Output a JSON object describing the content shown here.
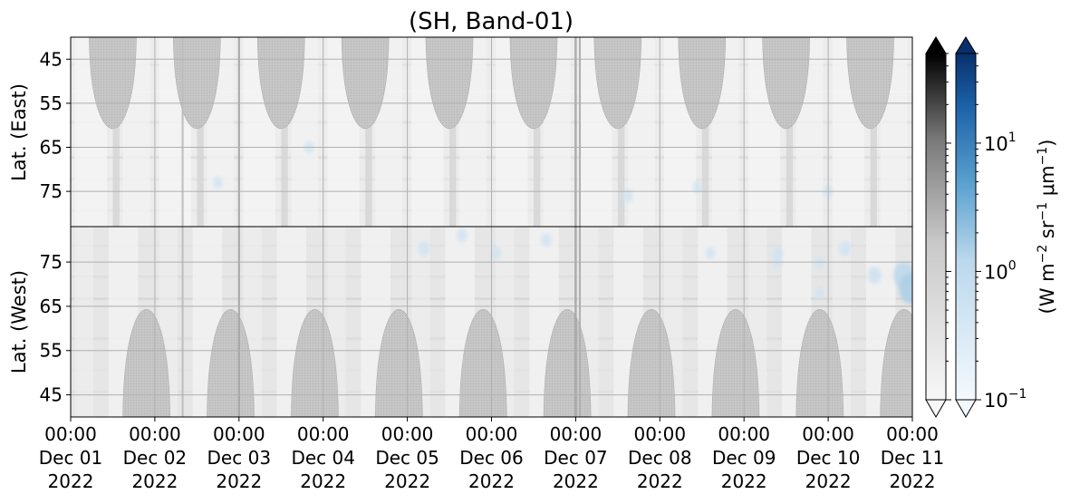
{
  "chart_data": {
    "type": "heatmap",
    "title": "(SH, Band-01)",
    "x": {
      "start": "2022-12-01T00:00",
      "end": "2022-12-11T00:00",
      "tick_times": [
        "2022-12-01T00:00",
        "2022-12-02T00:00",
        "2022-12-03T00:00",
        "2022-12-04T00:00",
        "2022-12-05T00:00",
        "2022-12-06T00:00",
        "2022-12-07T00:00",
        "2022-12-08T00:00",
        "2022-12-09T00:00",
        "2022-12-10T00:00",
        "2022-12-11T00:00"
      ],
      "tick_labels": [
        [
          "00:00",
          "Dec 01",
          "2022"
        ],
        [
          "00:00",
          "Dec 02",
          "2022"
        ],
        [
          "00:00",
          "Dec 03",
          "2022"
        ],
        [
          "00:00",
          "Dec 04",
          "2022"
        ],
        [
          "00:00",
          "Dec 05",
          "2022"
        ],
        [
          "00:00",
          "Dec 06",
          "2022"
        ],
        [
          "00:00",
          "Dec 07",
          "2022"
        ],
        [
          "00:00",
          "Dec 08",
          "2022"
        ],
        [
          "00:00",
          "Dec 09",
          "2022"
        ],
        [
          "00:00",
          "Dec 10",
          "2022"
        ],
        [
          "00:00",
          "Dec 11",
          "2022"
        ]
      ]
    },
    "panels": [
      {
        "id": "east",
        "ylabel": "Lat. (East)",
        "ylim": [
          40,
          83
        ],
        "inverted": true,
        "yticks": [
          45,
          55,
          65,
          75
        ],
        "sunlit_max_lat": 60.5,
        "sunlit_arch_days": [
          0.5,
          1.5,
          2.5,
          3.5,
          4.5,
          5.5,
          6.5,
          7.5,
          8.5,
          9.5
        ]
      },
      {
        "id": "west",
        "ylabel": "Lat. (West)",
        "ylim": [
          40,
          83
        ],
        "inverted": false,
        "yticks": [
          45,
          55,
          65,
          75
        ],
        "sunlit_max_lat": 64,
        "sunlit_arch_days": [
          0.9,
          1.9,
          2.9,
          3.9,
          4.9,
          5.9,
          6.9,
          7.9,
          8.9,
          9.9
        ]
      }
    ],
    "grid": true,
    "colorbars": [
      {
        "name": "gray",
        "scale": "log",
        "range": [
          0.1,
          50
        ],
        "extend": "both",
        "colors": [
          "#f6f6f6",
          "#9a9a9a",
          "#000000"
        ]
      },
      {
        "name": "blue",
        "scale": "log",
        "range": [
          0.1,
          50
        ],
        "extend": "both",
        "colors": [
          "#f0f6fb",
          "#6aaed6",
          "#08306b"
        ],
        "ticks": [
          {
            "base": "10",
            "exp": "−1",
            "value": 0.1
          },
          {
            "base": "10",
            "exp": "0",
            "value": 1
          },
          {
            "base": "10",
            "exp": "1",
            "value": 10
          }
        ],
        "label": {
          "prefix": "(W m",
          "sup1": "−2",
          "mid1": " sr",
          "sup2": "−1",
          "mid2": " μm",
          "sup3": "−1",
          "suffix": ")"
        }
      }
    ],
    "aurora_patches": [
      {
        "panel": "east",
        "day": 1.75,
        "lat": 73,
        "value": 0.3
      },
      {
        "panel": "east",
        "day": 2.83,
        "lat": 65,
        "value": 0.3
      },
      {
        "panel": "east",
        "day": 6.62,
        "lat": 76,
        "value": 0.4
      },
      {
        "panel": "east",
        "day": 7.45,
        "lat": 74,
        "value": 0.3
      },
      {
        "panel": "east",
        "day": 9.0,
        "lat": 75,
        "value": 0.3
      },
      {
        "panel": "west",
        "day": 4.2,
        "lat": 78,
        "value": 0.5
      },
      {
        "panel": "west",
        "day": 4.65,
        "lat": 81,
        "value": 0.4
      },
      {
        "panel": "west",
        "day": 5.05,
        "lat": 77,
        "value": 0.4
      },
      {
        "panel": "west",
        "day": 5.65,
        "lat": 80,
        "value": 0.4
      },
      {
        "panel": "west",
        "day": 7.6,
        "lat": 77,
        "value": 0.3
      },
      {
        "panel": "west",
        "day": 8.4,
        "lat": 77,
        "value": 0.4
      },
      {
        "panel": "west",
        "day": 9.2,
        "lat": 78,
        "value": 0.5
      },
      {
        "panel": "west",
        "day": 9.55,
        "lat": 72,
        "value": 0.6
      },
      {
        "panel": "west",
        "day": 9.9,
        "lat": 72,
        "value": 1.2
      },
      {
        "panel": "west",
        "day": 9.98,
        "lat": 69,
        "value": 1.5
      },
      {
        "panel": "west",
        "day": 8.4,
        "lat": 75,
        "value": 0.3
      },
      {
        "panel": "west",
        "day": 8.9,
        "lat": 75,
        "value": 0.3
      },
      {
        "panel": "west",
        "day": 8.9,
        "lat": 68,
        "value": 0.3
      }
    ]
  }
}
